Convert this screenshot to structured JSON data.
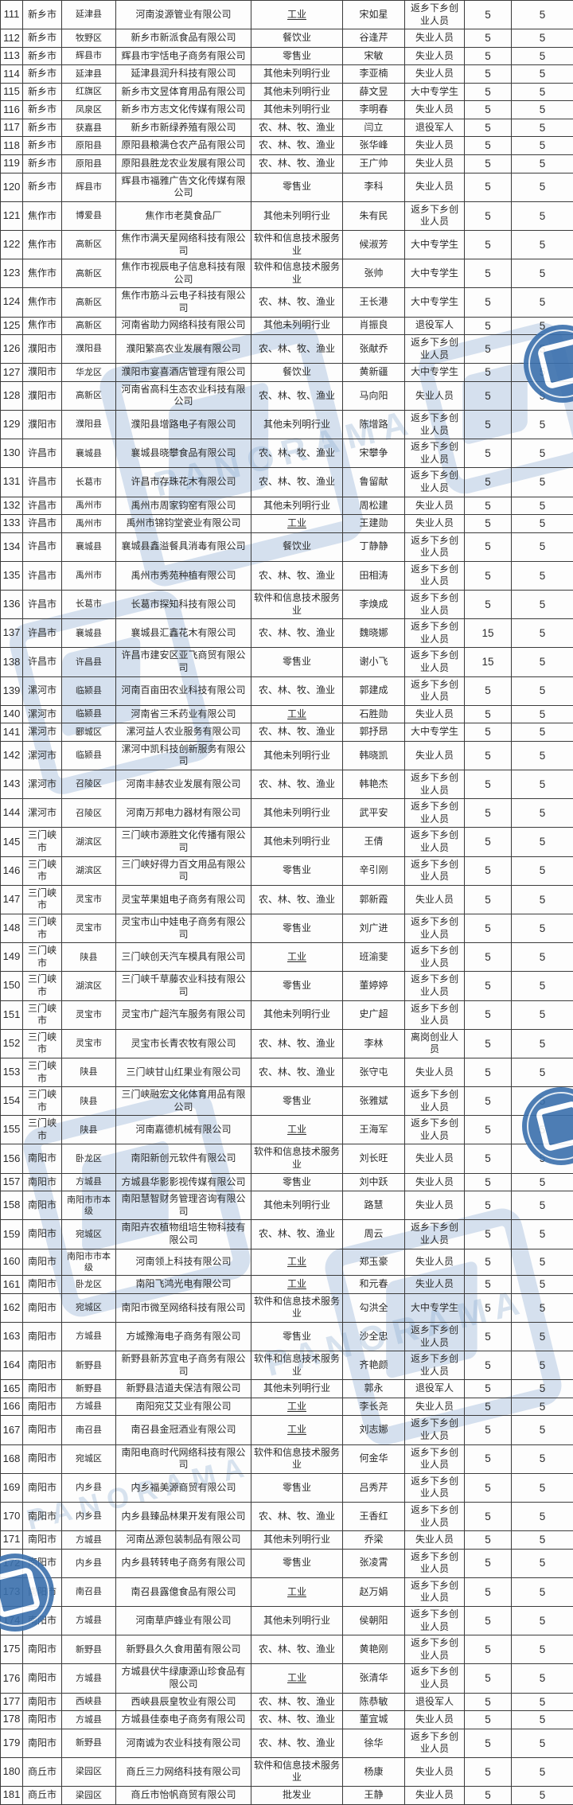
{
  "watermark": {
    "brand_text": "PANORAMA",
    "stamp_color": "#3a70ad",
    "tint_color": "rgba(122,160,206,0.30)"
  },
  "table": {
    "underline_industry_value": "工业",
    "rows": [
      [
        "111",
        "新乡市",
        "延津县",
        "河南浚源管业有限公司",
        "工业",
        "宋如星",
        "返乡下乡创业人员",
        "5",
        "5"
      ],
      [
        "112",
        "新乡市",
        "牧野区",
        "新乡市新派食品有限公司",
        "餐饮业",
        "谷逢芹",
        "失业人员",
        "5",
        "5"
      ],
      [
        "113",
        "新乡市",
        "辉县市",
        "辉县市宇恬电子商务有限公司",
        "零售业",
        "宋敏",
        "失业人员",
        "5",
        "5"
      ],
      [
        "114",
        "新乡市",
        "延津县",
        "延津县润升科技有限公司",
        "其他未列明行业",
        "李亚楠",
        "失业人员",
        "5",
        "5"
      ],
      [
        "115",
        "新乡市",
        "红旗区",
        "新乡市文昱体育用品有限公司",
        "其他未列明行业",
        "薛文昱",
        "大中专学生",
        "5",
        "5"
      ],
      [
        "116",
        "新乡市",
        "凤泉区",
        "新乡市方志文化传媒有限公司",
        "其他未列明行业",
        "李明春",
        "失业人员",
        "5",
        "5"
      ],
      [
        "117",
        "新乡市",
        "获嘉县",
        "新乡市新绿养殖有限公司",
        "农、林、牧、渔业",
        "闫立",
        "退役军人",
        "5",
        "5"
      ],
      [
        "118",
        "新乡市",
        "原阳县",
        "原阳县粮满仓农产品有限公司",
        "农、林、牧、渔业",
        "张华峰",
        "失业人员",
        "5",
        "5"
      ],
      [
        "119",
        "新乡市",
        "原阳县",
        "原阳县胜龙农业发展有限公司",
        "农、林、牧、渔业",
        "王广帅",
        "失业人员",
        "5",
        "5"
      ],
      [
        "120",
        "新乡市",
        "辉县市",
        "辉县市福雅广告文化传媒有限公司",
        "零售业",
        "李科",
        "失业人员",
        "5",
        "5"
      ],
      [
        "121",
        "焦作市",
        "博爱县",
        "焦作市老莫食品厂",
        "其他未列明行业",
        "朱有民",
        "返乡下乡创业人员",
        "5",
        "5"
      ],
      [
        "122",
        "焦作市",
        "高新区",
        "焦作市满天星网络科技有限公司",
        "软件和信息技术服务业",
        "候淑芳",
        "大中专学生",
        "5",
        "5"
      ],
      [
        "123",
        "焦作市",
        "高新区",
        "焦作市视辰电子信息科技有限公司",
        "软件和信息技术服务业",
        "张帅",
        "大中专学生",
        "5",
        "5"
      ],
      [
        "124",
        "焦作市",
        "高新区",
        "焦作市筋斗云电子科技有限公司",
        "农、林、牧、渔业",
        "王长港",
        "大中专学生",
        "5",
        "5"
      ],
      [
        "125",
        "焦作市",
        "高新区",
        "河南省助力网络科技有限公司",
        "其他未列明行业",
        "肖振良",
        "退役军人",
        "5",
        "5"
      ],
      [
        "126",
        "濮阳市",
        "濮阳县",
        "濮阳繁高农业发展有限公司",
        "农、林、牧、渔业",
        "张献乔",
        "返乡下乡创业人员",
        "5",
        "5"
      ],
      [
        "127",
        "濮阳市",
        "华龙区",
        "濮阳市宴喜酒店管理有限公司",
        "餐饮业",
        "黄新疆",
        "大中专学生",
        "5",
        "5"
      ],
      [
        "128",
        "濮阳市",
        "高新区",
        "河南省高科生态农业科技有限公司",
        "农、林、牧、渔业",
        "马向阳",
        "失业人员",
        "5",
        "5"
      ],
      [
        "129",
        "濮阳市",
        "濮阳县",
        "濮阳县增路电子有限公司",
        "其他未列明行业",
        "陈增路",
        "返乡下乡创业人员",
        "5",
        "5"
      ],
      [
        "130",
        "许昌市",
        "襄城县",
        "襄城县晓攀食品有限公司",
        "农、林、牧、渔业",
        "宋攀争",
        "返乡下乡创业人员",
        "5",
        "5"
      ],
      [
        "131",
        "许昌市",
        "长葛市",
        "许昌市存珠花木有限公司",
        "农、林、牧、渔业",
        "鲁留献",
        "返乡下乡创业人员",
        "5",
        "5"
      ],
      [
        "132",
        "许昌市",
        "禹州市",
        "禹州市周家钧窑有限公司",
        "其他未列明行业",
        "周松建",
        "失业人员",
        "5",
        "5"
      ],
      [
        "133",
        "许昌市",
        "禹州市",
        "禹州市锦钧堂瓷业有限公司",
        "工业",
        "王建勋",
        "失业人员",
        "5",
        "5"
      ],
      [
        "134",
        "许昌市",
        "襄城县",
        "襄城县鑫溢餐具消毒有限公司",
        "餐饮业",
        "丁静静",
        "返乡下乡创业人员",
        "5",
        "5"
      ],
      [
        "135",
        "许昌市",
        "禹州市",
        "禹州市秀苑种植有限公司",
        "农、林、牧、渔业",
        "田相涛",
        "返乡下乡创业人员",
        "5",
        "5"
      ],
      [
        "136",
        "许昌市",
        "长葛市",
        "长葛市探知科技有限公司",
        "软件和信息技术服务业",
        "李焕成",
        "返乡下乡创业人员",
        "5",
        "5"
      ],
      [
        "137",
        "许昌市",
        "襄城县",
        "襄城县汇鑫花木有限公司",
        "农、林、牧、渔业",
        "魏晓娜",
        "返乡下乡创业人员",
        "15",
        "5"
      ],
      [
        "138",
        "许昌市",
        "许昌县",
        "许昌市建安区亚飞商贸有限公司",
        "零售业",
        "谢小飞",
        "返乡下乡创业人员",
        "15",
        "5"
      ],
      [
        "139",
        "漯河市",
        "临颍县",
        "河南百亩田农业科技有限公司",
        "农、林、牧、渔业",
        "郭建成",
        "返乡下乡创业人员",
        "5",
        "5"
      ],
      [
        "140",
        "漯河市",
        "临颍县",
        "河南省三禾药业有限公司",
        "工业",
        "石胜勋",
        "失业人员",
        "5",
        "5"
      ],
      [
        "141",
        "漯河市",
        "郾城区",
        "漯河益人农业服务有限公司",
        "农、林、牧、渔业",
        "郭抒昂",
        "大中专学生",
        "5",
        "5"
      ],
      [
        "142",
        "漯河市",
        "临颍县",
        "漯河中凯科技创新服务有限公司",
        "其他未列明行业",
        "韩晓凯",
        "失业人员",
        "5",
        "5"
      ],
      [
        "143",
        "漯河市",
        "召陵区",
        "河南丰赫农业发展有限公司",
        "农、林、牧、渔业",
        "韩艳杰",
        "返乡下乡创业人员",
        "5",
        "5"
      ],
      [
        "144",
        "漯河市",
        "召陵区",
        "河南万邦电力器材有限公司",
        "其他未列明行业",
        "武平安",
        "返乡下乡创业人员",
        "5",
        "5"
      ],
      [
        "145",
        "三门峡市",
        "湖滨区",
        "三门峡市源胜文化传播有限公司",
        "其他未列明行业",
        "王倩",
        "返乡下乡创业人员",
        "5",
        "5"
      ],
      [
        "146",
        "三门峡市",
        "湖滨区",
        "三门峡好得力百文用品有限公司",
        "零售业",
        "辛引刚",
        "返乡下乡创业人员",
        "5",
        "5"
      ],
      [
        "147",
        "三门峡市",
        "灵宝市",
        "灵宝苹果姐电子商务有限公司",
        "农、林、牧、渔业",
        "郭新霞",
        "失业人员",
        "5",
        "5"
      ],
      [
        "148",
        "三门峡市",
        "灵宝市",
        "灵宝市山中娃电子商务有限公司",
        "零售业",
        "刘广进",
        "返乡下乡创业人员",
        "5",
        "5"
      ],
      [
        "149",
        "三门峡市",
        "陕县",
        "三门峡创天汽车模具有限公司",
        "工业",
        "班渝斐",
        "返乡下乡创业人员",
        "5",
        "5"
      ],
      [
        "150",
        "三门峡市",
        "湖滨区",
        "三门峡千草藤农业科技有限公司",
        "零售业",
        "董婷婷",
        "返乡下乡创业人员",
        "5",
        "5"
      ],
      [
        "151",
        "三门峡市",
        "灵宝市",
        "灵宝市广超汽车服务有限公司",
        "其他未列明行业",
        "史广超",
        "返乡下乡创业人员",
        "5",
        "5"
      ],
      [
        "152",
        "三门峡市",
        "灵宝市",
        "灵宝市长青农牧有限公司",
        "农、林、牧、渔业",
        "李林",
        "离岗创业人员",
        "5",
        "5"
      ],
      [
        "153",
        "三门峡市",
        "陕县",
        "三门峡甘山红果业有限公司",
        "农、林、牧、渔业",
        "张守屯",
        "失业人员",
        "5",
        "5"
      ],
      [
        "154",
        "三门峡市",
        "陕县",
        "三门峡融宏文化体育用品有限公司",
        "零售业",
        "张雅斌",
        "返乡下乡创业人员",
        "5",
        "5"
      ],
      [
        "155",
        "三门峡市",
        "陕县",
        "河南嘉德机械有限公司",
        "工业",
        "王海军",
        "返乡下乡创业人员",
        "5",
        "5"
      ],
      [
        "156",
        "南阳市",
        "卧龙区",
        "南阳新创元软件有限公司",
        "软件和信息技术服务业",
        "刘长旺",
        "失业人员",
        "5",
        "5"
      ],
      [
        "157",
        "南阳市",
        "方城县",
        "方城县华影影视传媒有限公司",
        "零售业",
        "刘中跃",
        "失业人员",
        "5",
        "5"
      ],
      [
        "158",
        "南阳市",
        "南阳市市本级",
        "南阳慧智财务管理咨询有限公司",
        "其他未列明行业",
        "路慧",
        "失业人员",
        "5",
        "5"
      ],
      [
        "159",
        "南阳市",
        "宛城区",
        "南阳卉农植物组培生物科技有限公司",
        "农、林、牧、渔业",
        "周云",
        "返乡下乡创业人员",
        "5",
        "5"
      ],
      [
        "160",
        "南阳市",
        "南阳市市本级",
        "河南领上科技有限公司",
        "工业",
        "郑玉豪",
        "失业人员",
        "5",
        "5"
      ],
      [
        "161",
        "南阳市",
        "卧龙区",
        "南阳飞鸿光电有限公司",
        "工业",
        "和元春",
        "失业人员",
        "5",
        "5"
      ],
      [
        "162",
        "南阳市",
        "宛城区",
        "南阳市微至网络科技有限公司",
        "软件和信息技术服务业",
        "勾洪全",
        "大中专学生",
        "5",
        "5"
      ],
      [
        "163",
        "南阳市",
        "方城县",
        "方城豫海电子商务有限公司",
        "零售业",
        "沙全忠",
        "返乡下乡创业人员",
        "5",
        "5"
      ],
      [
        "164",
        "南阳市",
        "新野县",
        "新野县新苏宜电子商务有限公司",
        "软件和信息技术服务业",
        "齐艳颜",
        "返乡下乡创业人员",
        "5",
        "5"
      ],
      [
        "165",
        "南阳市",
        "新野县",
        "新野县洁道夫保洁有限公司",
        "其他未列明行业",
        "郭永",
        "退役军人",
        "5",
        "5"
      ],
      [
        "166",
        "南阳市",
        "方城县",
        "南阳宛艾艾业有限公司",
        "工业",
        "李长尧",
        "失业人员",
        "5",
        "5"
      ],
      [
        "167",
        "南阳市",
        "南召县",
        "南召县金冠酒业有限公司",
        "工业",
        "刘志娜",
        "返乡下乡创业人员",
        "5",
        "5"
      ],
      [
        "168",
        "南阳市",
        "宛城区",
        "南阳电商时代网络科技有限公司",
        "软件和信息技术服务业",
        "何金华",
        "返乡下乡创业人员",
        "5",
        "5"
      ],
      [
        "169",
        "南阳市",
        "内乡县",
        "内乡福美源商贸有限公司",
        "零售业",
        "吕秀芹",
        "返乡下乡创业人员",
        "5",
        "5"
      ],
      [
        "170",
        "南阳市",
        "内乡县",
        "内乡县臻品林果开发有限公司",
        "农、林、牧、渔业",
        "王香红",
        "返乡下乡创业人员",
        "5",
        "5"
      ],
      [
        "171",
        "南阳市",
        "方城县",
        "河南丛源包装制品有限公司",
        "其他未列明行业",
        "乔梁",
        "失业人员",
        "5",
        "5"
      ],
      [
        "172",
        "南阳市",
        "内乡县",
        "内乡县转转电子商务有限公司",
        "零售业",
        "张凌霄",
        "返乡下乡创业人员",
        "5",
        "5"
      ],
      [
        "173",
        "南阳市",
        "南召县",
        "南召县露億食品有限公司",
        "工业",
        "赵万娟",
        "返乡下乡创业人员",
        "5",
        "5"
      ],
      [
        "174",
        "南阳市",
        "方城县",
        "河南草庐蜂业有限公司",
        "其他未列明行业",
        "侯朝阳",
        "返乡下乡创业人员",
        "5",
        "5"
      ],
      [
        "175",
        "南阳市",
        "新野县",
        "新野县久久食用菌有限公司",
        "农、林、牧、渔业",
        "黄艳刚",
        "返乡下乡创业人员",
        "5",
        "5"
      ],
      [
        "176",
        "南阳市",
        "方城县",
        "方城县伏牛绿康源山珍食品有限公司",
        "工业",
        "张清华",
        "返乡下乡创业人员",
        "5",
        "5"
      ],
      [
        "177",
        "南阳市",
        "西峡县",
        "西峡县辰皇牧业有限公司",
        "农、林、牧、渔业",
        "陈恭敏",
        "退役军人",
        "5",
        "5"
      ],
      [
        "178",
        "南阳市",
        "方城县",
        "方城县佳泰电子商务有限公司",
        "农、林、牧、渔业",
        "董宜城",
        "失业人员",
        "5",
        "5"
      ],
      [
        "179",
        "南阳市",
        "新野县",
        "河南诚为农业科技有限公司",
        "农、林、牧、渔业",
        "徐华",
        "返乡下乡创业人员",
        "5",
        "5"
      ],
      [
        "180",
        "商丘市",
        "梁园区",
        "商丘三力网络科技有限公司",
        "软件和信息技术服务业",
        "杨康",
        "失业人员",
        "5",
        "5"
      ],
      [
        "181",
        "商丘市",
        "梁园区",
        "商丘市怡帆商贸有限公司",
        "批发业",
        "王静",
        "失业人员",
        "5",
        "5"
      ]
    ]
  }
}
